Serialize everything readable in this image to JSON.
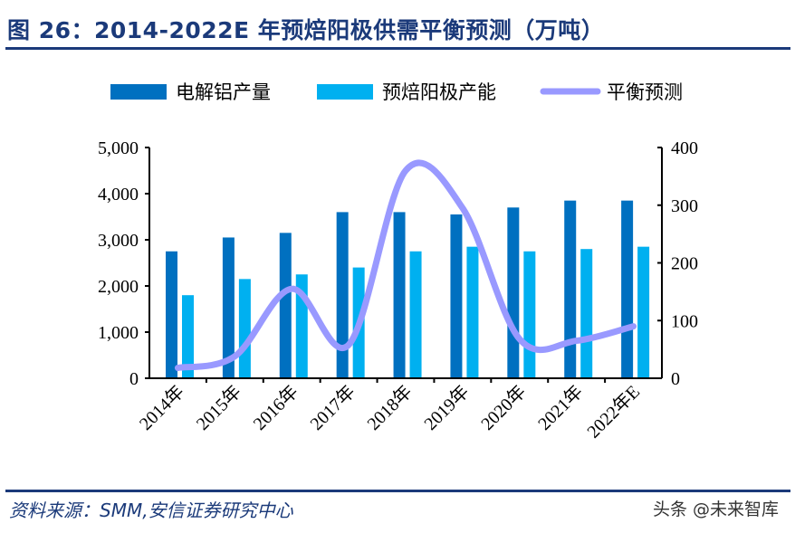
{
  "title": "图 26：2014-2022E 年预焙阳极供需平衡预测（万吨）",
  "source": "资料来源：SMM,安信证券研究中心",
  "watermark": "头条 @未来智库",
  "chart_data": {
    "type": "bar+line",
    "title": "2014-2022E 年预焙阳极供需平衡预测（万吨）",
    "categories": [
      "2014年",
      "2015年",
      "2016年",
      "2017年",
      "2018年",
      "2019年",
      "2020年",
      "2021年",
      "2022年E"
    ],
    "series": [
      {
        "name": "电解铝产量",
        "type": "bar",
        "axis": "left",
        "color": "#0070c0",
        "values": [
          2750,
          3050,
          3150,
          3600,
          3600,
          3550,
          3700,
          3850,
          3850
        ]
      },
      {
        "name": "预焙阳极产能",
        "type": "bar",
        "axis": "left",
        "color": "#00b0f0",
        "values": [
          1800,
          2150,
          2250,
          2400,
          2750,
          2850,
          2750,
          2800,
          2850
        ]
      },
      {
        "name": "平衡预测",
        "type": "line",
        "axis": "right",
        "color": "#9999ff",
        "values": [
          18,
          38,
          155,
          58,
          360,
          295,
          68,
          65,
          90
        ]
      }
    ],
    "left_axis": {
      "range": [
        0,
        5000
      ],
      "ticks": [
        "0",
        "1,000",
        "2,000",
        "3,000",
        "4,000",
        "5,000"
      ]
    },
    "right_axis": {
      "range": [
        0,
        400
      ],
      "ticks": [
        "0",
        "100",
        "200",
        "300",
        "400"
      ]
    },
    "grid": false,
    "legend": "top"
  }
}
